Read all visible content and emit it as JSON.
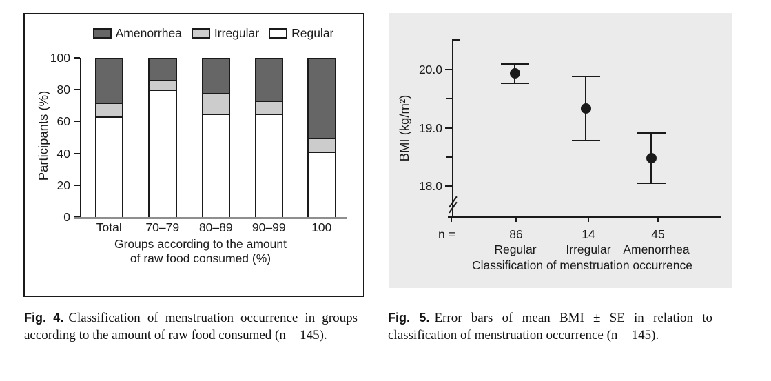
{
  "chart_data": [
    {
      "id": "fig4",
      "type": "bar",
      "stacked": true,
      "unit": "percent",
      "categories": [
        "Total",
        "70–79",
        "80–89",
        "90–99",
        "100"
      ],
      "series": [
        {
          "name": "Regular",
          "color": "#ffffff",
          "values": [
            63,
            80,
            65,
            65,
            41
          ]
        },
        {
          "name": "Irregular",
          "color": "#cccccc",
          "values": [
            9,
            6,
            13,
            8,
            9
          ]
        },
        {
          "name": "Amenorrhea",
          "color": "#666666",
          "values": [
            28,
            14,
            22,
            27,
            50
          ]
        }
      ],
      "legend_order": [
        "Amenorrhea",
        "Irregular",
        "Regular"
      ],
      "legend_position": "top",
      "ylabel": "Participants (%)",
      "ylim": [
        0,
        100
      ],
      "yticks": [
        0,
        20,
        40,
        60,
        80,
        100
      ],
      "xlabel_lines": [
        "Groups according to the amount",
        "of raw food consumed (%)"
      ],
      "grid": false
    },
    {
      "id": "fig5",
      "type": "errorbar",
      "categories": [
        "Regular",
        "Irregular",
        "Amenorrhea"
      ],
      "n_label": "n =",
      "n_values": [
        "86",
        "14",
        "45"
      ],
      "points": [
        {
          "category": "Regular",
          "mean": 19.93,
          "se": 0.17
        },
        {
          "category": "Irregular",
          "mean": 19.33,
          "se": 0.55
        },
        {
          "category": "Amenorrhea",
          "mean": 18.48,
          "se": 0.43
        }
      ],
      "ylabel": "BMI (kg/m²)",
      "yticks_major": [
        20.0,
        19.0,
        18.0
      ],
      "yticks_minor": [
        19.5,
        18.5
      ],
      "ylim_visible": [
        17.8,
        20.5
      ],
      "axis_break": true,
      "xlabel": "Classification of menstruation occurrence",
      "background": "#ebebeb",
      "grid": false
    }
  ],
  "captions": {
    "fig4": {
      "label": "Fig. 4.",
      "text": "Classification of menstruation occurrence in groups according to the amount of raw food consumed (n = 145)."
    },
    "fig5": {
      "label": "Fig. 5.",
      "text": "Error bars of mean BMI ± SE in relation to classification of menstruation occurrence (n = 145)."
    }
  },
  "colors": {
    "ink": "#1a1a1a",
    "bar_dark": "#666666",
    "bar_light": "#cccccc",
    "bar_white": "#ffffff",
    "panel_bg": "#ebebeb",
    "x_axis_gray": "#8e8e8e"
  }
}
